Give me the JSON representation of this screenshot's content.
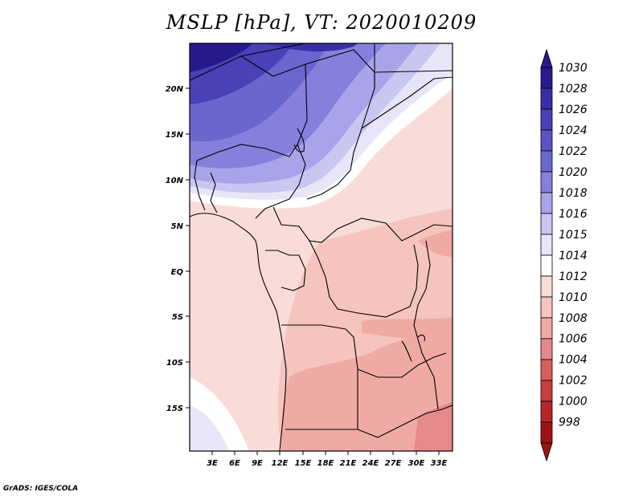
{
  "title": "MSLP [hPa], VT: 2020010209",
  "credit": "GrADS: IGES/COLA",
  "map": {
    "lat_labels": [
      "20N",
      "15N",
      "10N",
      "5N",
      "EQ",
      "5S",
      "10S",
      "15S"
    ],
    "lon_labels": [
      "3E",
      "6E",
      "9E",
      "12E",
      "15E",
      "18E",
      "21E",
      "24E",
      "27E",
      "30E",
      "33E"
    ]
  },
  "colorbar": {
    "levels": [
      "1030",
      "1028",
      "1026",
      "1024",
      "1022",
      "1020",
      "1018",
      "1016",
      "1015",
      "1014",
      "1012",
      "1010",
      "1008",
      "1006",
      "1004",
      "1002",
      "1000",
      "998"
    ],
    "colors": [
      "#29198f",
      "#3a2ea6",
      "#4a40b7",
      "#5a52c5",
      "#6a66cf",
      "#8680dc",
      "#a9a3e9",
      "#cac6f2",
      "#e7e5f8",
      "#ffffff",
      "#f9dcd8",
      "#f5c4bf",
      "#efaaa4",
      "#e6898a",
      "#d95e5c",
      "#c93e3e",
      "#b82626",
      "#9c1313"
    ]
  }
}
